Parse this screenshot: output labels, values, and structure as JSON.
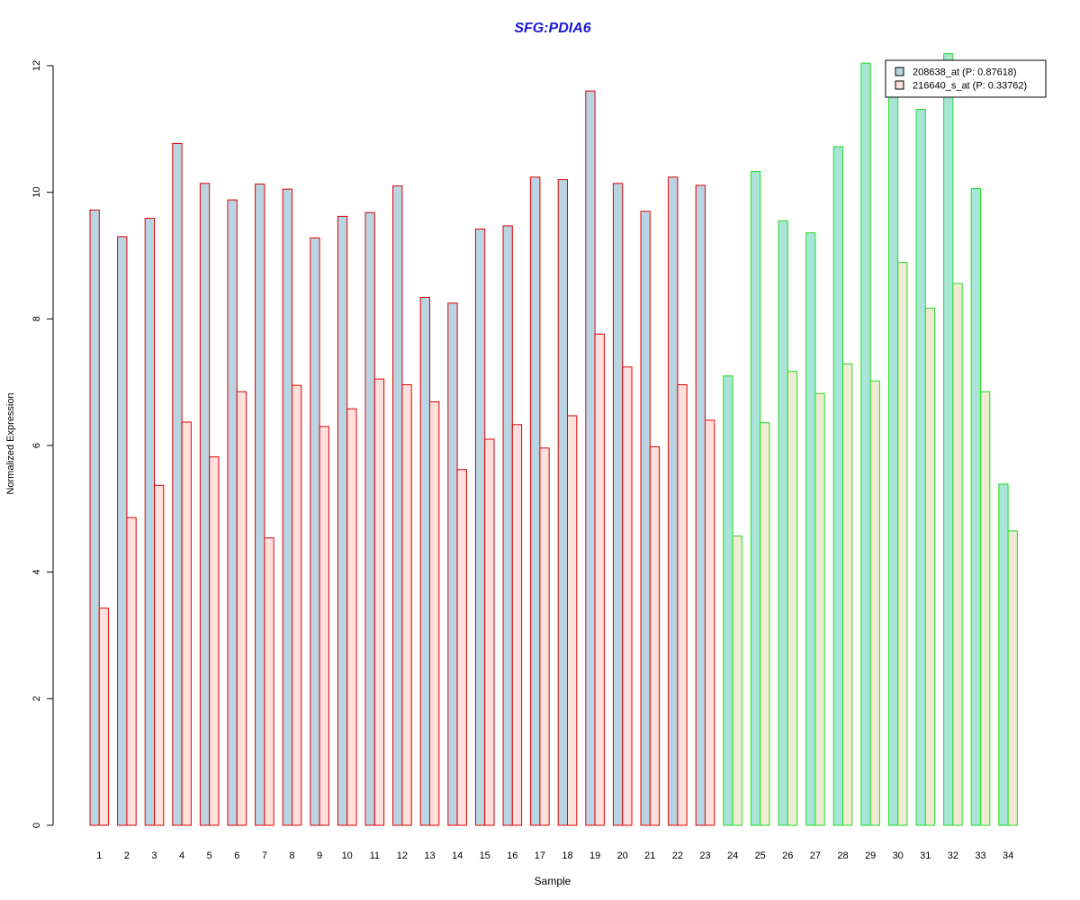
{
  "chart_data": {
    "type": "bar",
    "title": "SFG:PDIA6",
    "xlabel": "Sample",
    "ylabel": "Normalized Expression",
    "ylim": [
      0,
      12
    ],
    "yticks": [
      "0",
      "2",
      "4",
      "6",
      "8",
      "10",
      "12"
    ],
    "grid": false,
    "legend_position": "top-right",
    "categories": [
      "1",
      "2",
      "3",
      "4",
      "5",
      "6",
      "7",
      "8",
      "9",
      "10",
      "11",
      "12",
      "13",
      "14",
      "15",
      "16",
      "17",
      "18",
      "19",
      "20",
      "21",
      "22",
      "23",
      "24",
      "25",
      "26",
      "27",
      "28",
      "29",
      "30",
      "31",
      "32",
      "33",
      "34"
    ],
    "group_a_count": 23,
    "series": [
      {
        "name": "208638_at (P: 0.87618)",
        "fill_a": "#b9d5e4",
        "border_a": "#e00000",
        "fill_b": "#a8e4d8",
        "border_b": "#22dd22",
        "values": [
          9.72,
          9.3,
          9.59,
          10.77,
          10.14,
          9.88,
          10.13,
          10.05,
          9.28,
          9.62,
          9.68,
          10.1,
          8.34,
          8.25,
          9.42,
          9.47,
          10.24,
          10.2,
          11.6,
          10.14,
          9.7,
          10.24,
          10.11,
          7.1,
          10.33,
          9.55,
          9.36,
          10.72,
          12.04,
          11.59,
          11.31,
          12.19,
          10.06,
          5.39
        ]
      },
      {
        "name": "216640_s_at (P: 0.33762)",
        "fill_a": "#ffe0dc",
        "border_a": "#e00000",
        "fill_b": "#f0ecd4",
        "border_b": "#22dd22",
        "values": [
          3.43,
          4.86,
          5.37,
          6.37,
          5.82,
          6.85,
          4.54,
          6.95,
          6.3,
          6.58,
          7.05,
          6.96,
          6.69,
          5.62,
          6.1,
          6.33,
          5.96,
          6.47,
          7.76,
          7.24,
          5.98,
          6.96,
          6.4,
          4.57,
          6.36,
          7.17,
          6.82,
          7.29,
          7.02,
          8.89,
          8.17,
          8.56,
          6.85,
          4.65
        ]
      }
    ],
    "colors": {
      "title": "#1a1ad6",
      "axis": "#000000",
      "text": "#000000"
    }
  }
}
